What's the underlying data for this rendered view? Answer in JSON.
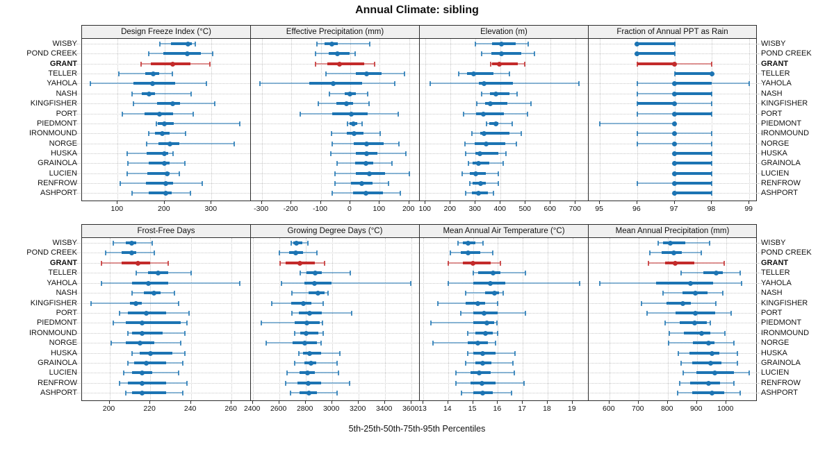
{
  "title": "Annual Climate: sibling",
  "caption": "5th-25th-50th-75th-95th Percentiles",
  "sites": [
    "WISBY",
    "POND CREEK",
    "GRANT",
    "TELLER",
    "YAHOLA",
    "NASH",
    "KINGFISHER",
    "PORT",
    "PIEDMONT",
    "IRONMOUND",
    "NORGE",
    "HUSKA",
    "GRAINOLA",
    "LUCIEN",
    "RENFROW",
    "ASHPORT"
  ],
  "highlight_site": "GRANT",
  "colors": {
    "series": "#1C74B3",
    "highlight": "#C32B2B",
    "strip_bg": "#F0F0F0",
    "panel_border": "#2B2B2B",
    "grid": "#C8C8C8",
    "text": "#111111"
  },
  "chart_data": [
    {
      "type": "scatter",
      "subtype": "percentile-intervals",
      "title": "Design Freeze Index (°C)",
      "percentiles": [
        5,
        25,
        50,
        75,
        95
      ],
      "xlim": [
        24,
        384
      ],
      "ticks": [
        100,
        200,
        300
      ],
      "values": [
        [
          190,
          214,
          250,
          258,
          266
        ],
        [
          166,
          198,
          248,
          277,
          302
        ],
        [
          150,
          171,
          218,
          255,
          296
        ],
        [
          102,
          159,
          176,
          189,
          216
        ],
        [
          42,
          134,
          174,
          223,
          289
        ],
        [
          130,
          152,
          167,
          180,
          256
        ],
        [
          134,
          184,
          218,
          233,
          307
        ],
        [
          110,
          157,
          189,
          218,
          261
        ],
        [
          182,
          186,
          199,
          220,
          360
        ],
        [
          166,
          179,
          195,
          211,
          245
        ],
        [
          162,
          187,
          212,
          231,
          348
        ],
        [
          121,
          162,
          200,
          208,
          218
        ],
        [
          122,
          166,
          200,
          210,
          243
        ],
        [
          121,
          163,
          205,
          211,
          232
        ],
        [
          106,
          161,
          203,
          218,
          281
        ],
        [
          131,
          166,
          202,
          215,
          255
        ]
      ]
    },
    {
      "type": "scatter",
      "subtype": "percentile-intervals",
      "title": "Effective Precipitation (mm)",
      "percentiles": [
        5,
        25,
        50,
        75,
        95
      ],
      "xlim": [
        -337,
        236
      ],
      "ticks": [
        -300,
        -200,
        -100,
        0,
        100,
        200
      ],
      "values": [
        [
          -112,
          -87,
          -62,
          -42,
          66
        ],
        [
          -117,
          -74,
          -44,
          -3,
          16
        ],
        [
          -117,
          -78,
          -36,
          48,
          82
        ],
        [
          -82,
          19,
          56,
          107,
          185
        ],
        [
          -306,
          -138,
          -57,
          40,
          150
        ],
        [
          -70,
          -19,
          0,
          19,
          60
        ],
        [
          -109,
          -46,
          -13,
          9,
          64
        ],
        [
          -170,
          -62,
          3,
          60,
          163
        ],
        [
          -9,
          -3,
          11,
          24,
          40
        ],
        [
          -64,
          -11,
          14,
          44,
          101
        ],
        [
          -62,
          11,
          56,
          113,
          166
        ],
        [
          -66,
          20,
          56,
          91,
          188
        ],
        [
          -44,
          16,
          53,
          79,
          142
        ],
        [
          -52,
          20,
          66,
          119,
          201
        ],
        [
          -52,
          3,
          38,
          75,
          129
        ],
        [
          -60,
          9,
          53,
          111,
          170
        ]
      ]
    },
    {
      "type": "scatter",
      "subtype": "percentile-intervals",
      "title": "Elevation (m)",
      "percentiles": [
        5,
        25,
        50,
        75,
        95
      ],
      "xlim": [
        77,
        752
      ],
      "ticks": [
        100,
        200,
        300,
        400,
        500,
        600,
        700
      ],
      "values": [
        [
          300,
          367,
          402,
          460,
          510
        ],
        [
          323,
          364,
          404,
          482,
          536
        ],
        [
          360,
          366,
          396,
          469,
          497
        ],
        [
          232,
          265,
          291,
          372,
          434
        ],
        [
          119,
          314,
          334,
          450,
          714
        ],
        [
          325,
          358,
          382,
          434,
          466
        ],
        [
          305,
          339,
          360,
          427,
          521
        ],
        [
          251,
          302,
          330,
          413,
          508
        ],
        [
          345,
          355,
          380,
          392,
          447
        ],
        [
          285,
          318,
          335,
          436,
          482
        ],
        [
          258,
          297,
          342,
          418,
          462
        ],
        [
          260,
          299,
          318,
          390,
          422
        ],
        [
          271,
          288,
          311,
          355,
          410
        ],
        [
          247,
          277,
          300,
          340,
          392
        ],
        [
          278,
          289,
          320,
          340,
          391
        ],
        [
          259,
          284,
          312,
          349,
          372
        ]
      ]
    },
    {
      "type": "scatter",
      "subtype": "percentile-intervals",
      "title": "Fraction of Annual PPT as Rain",
      "percentiles": [
        5,
        25,
        50,
        75,
        95
      ],
      "xlim": [
        94.7,
        99.22
      ],
      "ticks": [
        95,
        96,
        97,
        98,
        99
      ],
      "values": [
        [
          96,
          96,
          96,
          97,
          97
        ],
        [
          96,
          96,
          96,
          97,
          97
        ],
        [
          96,
          96,
          97,
          97,
          98
        ],
        [
          97,
          97,
          98,
          98,
          98
        ],
        [
          96,
          97,
          97,
          98,
          99
        ],
        [
          96,
          97,
          97,
          98,
          98
        ],
        [
          96,
          96,
          97,
          97,
          98
        ],
        [
          96,
          97,
          97,
          98,
          98
        ],
        [
          95,
          97,
          97,
          97,
          97
        ],
        [
          96,
          97,
          97,
          97,
          98
        ],
        [
          96,
          97,
          97,
          97,
          98
        ],
        [
          97,
          97,
          97,
          98,
          98
        ],
        [
          97,
          97,
          97,
          98,
          98
        ],
        [
          97,
          97,
          97,
          98,
          98
        ],
        [
          96,
          97,
          97,
          98,
          98
        ],
        [
          97,
          97,
          97,
          98,
          98
        ]
      ]
    },
    {
      "type": "scatter",
      "subtype": "percentile-intervals",
      "title": "Frost-Free Days",
      "percentiles": [
        5,
        25,
        50,
        75,
        95
      ],
      "xlim": [
        186.5,
        269.5
      ],
      "ticks": [
        200,
        220,
        240,
        260
      ],
      "values": [
        [
          202,
          208,
          211,
          213,
          221
        ],
        [
          198,
          206,
          211,
          213,
          222
        ],
        [
          196,
          206,
          214,
          220,
          229
        ],
        [
          213,
          219,
          224,
          229,
          240
        ],
        [
          196,
          211,
          219,
          229,
          264
        ],
        [
          211,
          217,
          222,
          225,
          232
        ],
        [
          191,
          210,
          213,
          216,
          234
        ],
        [
          205,
          209,
          218,
          228,
          239
        ],
        [
          202,
          208,
          216,
          235,
          238
        ],
        [
          209,
          211,
          216,
          226,
          237
        ],
        [
          201,
          208,
          215,
          222,
          235
        ],
        [
          211,
          215,
          220,
          231,
          237
        ],
        [
          209,
          212,
          218,
          228,
          236
        ],
        [
          207,
          211,
          216,
          221,
          234
        ],
        [
          205,
          209,
          216,
          228,
          238
        ],
        [
          208,
          211,
          216,
          228,
          236
        ]
      ]
    },
    {
      "type": "scatter",
      "subtype": "percentile-intervals",
      "title": "Growing Degree Days (°C)",
      "percentiles": [
        5,
        25,
        50,
        75,
        95
      ],
      "xlim": [
        2386,
        3665
      ],
      "ticks": [
        2400,
        2600,
        2800,
        3000,
        3200,
        3400,
        3600
      ],
      "values": [
        [
          2690,
          2705,
          2733,
          2775,
          2818
        ],
        [
          2602,
          2673,
          2726,
          2782,
          2885
        ],
        [
          2605,
          2650,
          2756,
          2871,
          2942
        ],
        [
          2761,
          2809,
          2871,
          2924,
          3140
        ],
        [
          2620,
          2791,
          2867,
          2998,
          3596
        ],
        [
          2697,
          2821,
          2892,
          2942,
          2968
        ],
        [
          2543,
          2690,
          2782,
          2844,
          2936
        ],
        [
          2697,
          2750,
          2832,
          2924,
          3150
        ],
        [
          2464,
          2720,
          2809,
          2906,
          2927
        ],
        [
          2720,
          2761,
          2804,
          2897,
          2933
        ],
        [
          2503,
          2703,
          2796,
          2888,
          2920
        ],
        [
          2750,
          2779,
          2832,
          2920,
          3062
        ],
        [
          2720,
          2791,
          2839,
          2880,
          3039
        ],
        [
          2662,
          2756,
          2814,
          2871,
          3051
        ],
        [
          2650,
          2738,
          2821,
          2920,
          3136
        ],
        [
          2685,
          2756,
          2827,
          2885,
          3039
        ]
      ]
    },
    {
      "type": "scatter",
      "subtype": "percentile-intervals",
      "title": "Mean Annual Air Temperature (°C)",
      "percentiles": [
        5,
        25,
        50,
        75,
        95
      ],
      "xlim": [
        12.86,
        19.65
      ],
      "ticks": [
        13,
        14,
        15,
        16,
        17,
        18,
        19
      ],
      "values": [
        [
          14.4,
          14.6,
          14.8,
          15.1,
          15.4
        ],
        [
          14.1,
          14.5,
          14.8,
          15.3,
          15.8
        ],
        [
          14.0,
          14.6,
          15.0,
          15.7,
          16.1
        ],
        [
          15.0,
          15.2,
          15.8,
          16.1,
          17.1
        ],
        [
          14.0,
          15.0,
          15.7,
          16.3,
          19.3
        ],
        [
          14.7,
          15.5,
          15.85,
          16.05,
          16.2
        ],
        [
          13.6,
          14.7,
          15.2,
          15.5,
          16.0
        ],
        [
          14.5,
          15.0,
          15.45,
          16.0,
          17.1
        ],
        [
          13.3,
          15.0,
          15.55,
          15.85,
          15.95
        ],
        [
          14.8,
          15.1,
          15.5,
          15.8,
          16.0
        ],
        [
          13.4,
          14.8,
          15.2,
          15.6,
          15.9
        ],
        [
          14.8,
          15.0,
          15.4,
          15.9,
          16.7
        ],
        [
          14.7,
          15.1,
          15.4,
          15.75,
          16.6
        ],
        [
          14.3,
          14.9,
          15.25,
          15.7,
          16.65
        ],
        [
          14.3,
          14.9,
          15.35,
          15.9,
          17.05
        ],
        [
          14.55,
          15.0,
          15.4,
          15.8,
          16.55
        ]
      ]
    },
    {
      "type": "scatter",
      "subtype": "percentile-intervals",
      "title": "Mean Annual Precipitation (mm)",
      "percentiles": [
        5,
        25,
        50,
        75,
        95
      ],
      "xlim": [
        529,
        1108
      ],
      "ticks": [
        600,
        700,
        800,
        900,
        1000
      ],
      "values": [
        [
          768,
          784,
          810,
          860,
          943
        ],
        [
          739,
          780,
          821,
          848,
          915
        ],
        [
          733,
          792,
          826,
          890,
          994
        ],
        [
          845,
          921,
          967,
          990,
          1048
        ],
        [
          567,
          760,
          877,
          955,
          1054
        ],
        [
          784,
          850,
          895,
          937,
          988
        ],
        [
          710,
          796,
          853,
          879,
          964
        ],
        [
          729,
          826,
          895,
          963,
          1018
        ],
        [
          790,
          842,
          893,
          935,
          945
        ],
        [
          806,
          856,
          917,
          945,
          996
        ],
        [
          804,
          887,
          939,
          961,
          1028
        ],
        [
          837,
          874,
          953,
          977,
          1040
        ],
        [
          845,
          885,
          948,
          983,
          1038
        ],
        [
          853,
          898,
          961,
          1026,
          1080
        ],
        [
          842,
          877,
          940,
          979,
          1028
        ],
        [
          834,
          885,
          953,
          993,
          1048
        ]
      ]
    }
  ]
}
